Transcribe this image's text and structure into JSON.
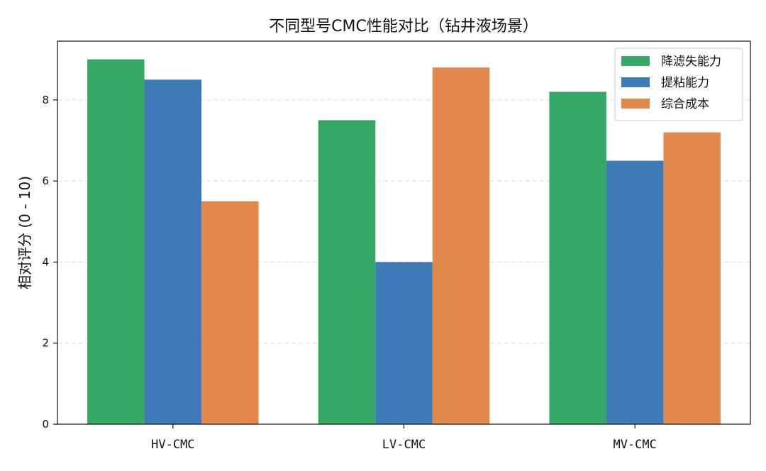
{
  "chart_data": {
    "type": "bar",
    "title": "不同型号CMC性能对比（钻井液场景）",
    "xlabel": "",
    "ylabel": "相对评分 (0 - 10)",
    "categories": [
      "HV-CMC",
      "LV-CMC",
      "MV-CMC"
    ],
    "series": [
      {
        "name": "降滤失能力",
        "color": "#36a865",
        "values": [
          9.0,
          7.5,
          8.2
        ]
      },
      {
        "name": "提粘能力",
        "color": "#3f7ab8",
        "values": [
          8.5,
          4.0,
          6.5
        ]
      },
      {
        "name": "综合成本",
        "color": "#e1884c",
        "values": [
          5.5,
          8.8,
          7.2
        ]
      }
    ],
    "ylim": [
      0,
      9.45
    ],
    "yticks": [
      0,
      2,
      4,
      6,
      8
    ],
    "grid": "y-dashed",
    "legend_position": "top-right"
  }
}
